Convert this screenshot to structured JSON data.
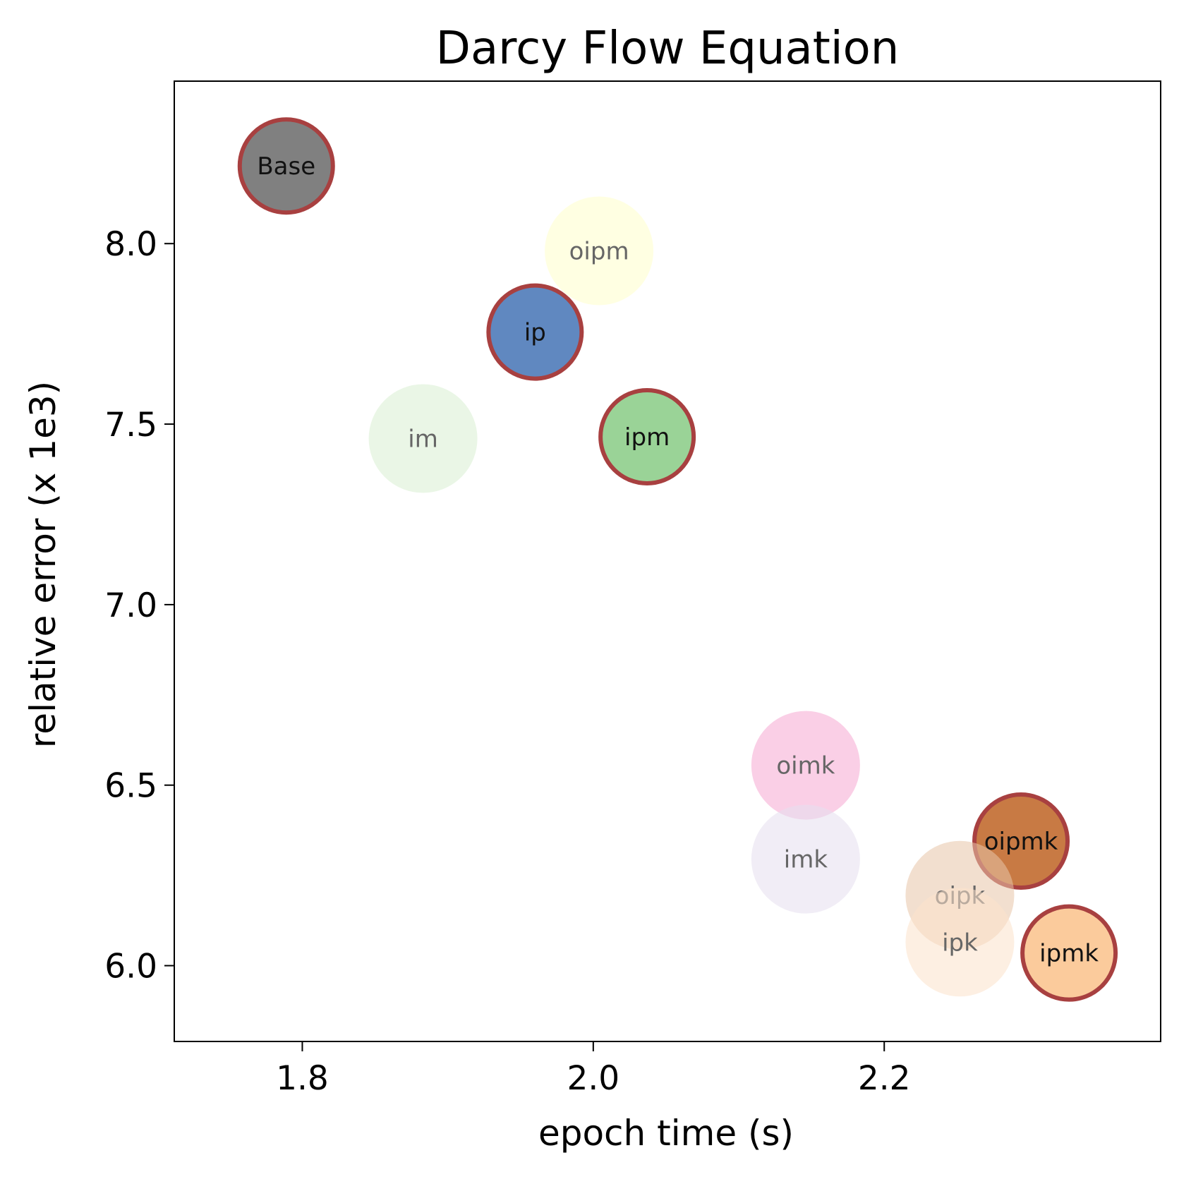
{
  "chart_data": {
    "type": "scatter",
    "title": "Darcy Flow Equation",
    "xlabel": "epoch time (s)",
    "ylabel": "relative error (x 1e3)",
    "xlim": [
      1.712,
      2.39
    ],
    "ylim": [
      5.79,
      8.45
    ],
    "xticks": [
      "1.8",
      "2.0",
      "2.2"
    ],
    "yticks": [
      "6.0",
      "6.5",
      "7.0",
      "7.5",
      "8.0"
    ],
    "grid": false,
    "points": [
      {
        "label": "Base",
        "x": 1.789,
        "y": 8.215,
        "color": "#808080",
        "highlighted": true
      },
      {
        "label": "oipm",
        "x": 2.004,
        "y": 7.98,
        "color": "#ffffcc",
        "highlighted": false
      },
      {
        "label": "ip",
        "x": 1.96,
        "y": 7.755,
        "color": "#6088c0",
        "highlighted": true
      },
      {
        "label": "im",
        "x": 1.883,
        "y": 7.46,
        "color": "#d9f0d3",
        "highlighted": false
      },
      {
        "label": "ipm",
        "x": 2.037,
        "y": 7.465,
        "color": "#9ad397",
        "highlighted": true
      },
      {
        "label": "oimk",
        "x": 2.146,
        "y": 6.555,
        "color": "#f7a8d3",
        "highlighted": false
      },
      {
        "label": "imk",
        "x": 2.146,
        "y": 6.295,
        "color": "#e6e0f0",
        "highlighted": false
      },
      {
        "label": "oipmk",
        "x": 2.294,
        "y": 6.345,
        "color": "#c87a44",
        "highlighted": true
      },
      {
        "label": "oipk",
        "x": 2.252,
        "y": 6.195,
        "color": "#e8c6a8",
        "highlighted": false
      },
      {
        "label": "ipk",
        "x": 2.252,
        "y": 6.065,
        "color": "#fde3cc",
        "highlighted": false
      },
      {
        "label": "ipmk",
        "x": 2.327,
        "y": 6.035,
        "color": "#fbcb9c",
        "highlighted": true
      }
    ]
  }
}
